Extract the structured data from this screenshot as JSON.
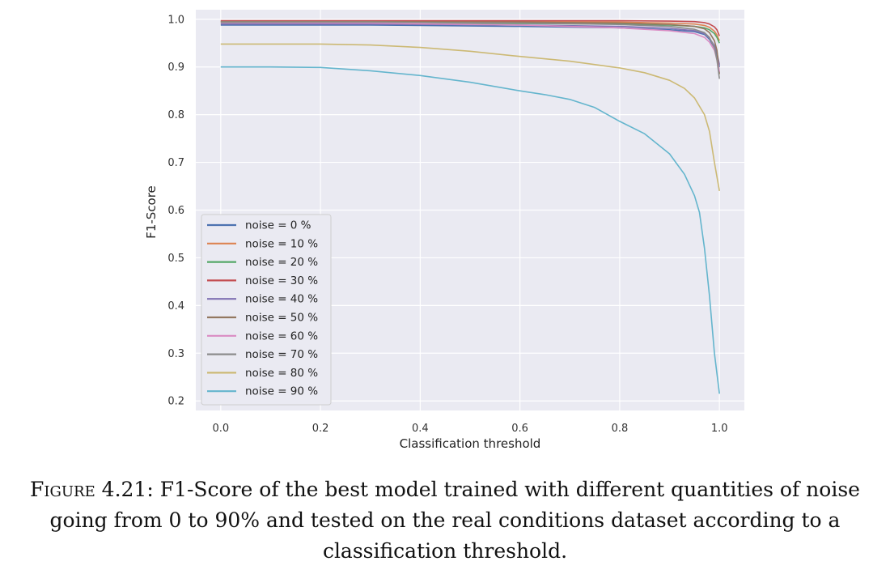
{
  "chart_data": {
    "type": "line",
    "title": "",
    "xlabel": "Classification threshold",
    "ylabel": "F1-Score",
    "xlim": [
      -0.05,
      1.05
    ],
    "ylim": [
      0.18,
      1.02
    ],
    "xticks": [
      "0.0",
      "0.2",
      "0.4",
      "0.6",
      "0.8",
      "1.0"
    ],
    "yticks": [
      "0.2",
      "0.3",
      "0.4",
      "0.5",
      "0.6",
      "0.7",
      "0.8",
      "0.9",
      "1.0"
    ],
    "grid": true,
    "legend_position": "lower-left",
    "series": [
      {
        "name": "noise = 0 %",
        "color": "#4c72b0",
        "points": [
          [
            0,
            0.988
          ],
          [
            0.3,
            0.988
          ],
          [
            0.6,
            0.985
          ],
          [
            0.8,
            0.982
          ],
          [
            0.9,
            0.978
          ],
          [
            0.95,
            0.974
          ],
          [
            0.97,
            0.968
          ],
          [
            0.98,
            0.958
          ],
          [
            0.99,
            0.94
          ],
          [
            0.995,
            0.925
          ],
          [
            1.0,
            0.9
          ]
        ]
      },
      {
        "name": "noise = 10 %",
        "color": "#dd8452",
        "points": [
          [
            0,
            0.996
          ],
          [
            0.3,
            0.996
          ],
          [
            0.6,
            0.995
          ],
          [
            0.8,
            0.994
          ],
          [
            0.9,
            0.992
          ],
          [
            0.95,
            0.99
          ],
          [
            0.97,
            0.987
          ],
          [
            0.98,
            0.983
          ],
          [
            0.99,
            0.975
          ],
          [
            0.995,
            0.967
          ],
          [
            1.0,
            0.955
          ]
        ]
      },
      {
        "name": "noise = 20 %",
        "color": "#55a868",
        "points": [
          [
            0,
            0.992
          ],
          [
            0.3,
            0.992
          ],
          [
            0.6,
            0.991
          ],
          [
            0.8,
            0.99
          ],
          [
            0.9,
            0.988
          ],
          [
            0.95,
            0.985
          ],
          [
            0.97,
            0.982
          ],
          [
            0.98,
            0.978
          ],
          [
            0.99,
            0.97
          ],
          [
            0.995,
            0.962
          ],
          [
            1.0,
            0.95
          ]
        ]
      },
      {
        "name": "noise = 30 %",
        "color": "#c44e52",
        "points": [
          [
            0,
            0.997
          ],
          [
            0.3,
            0.997
          ],
          [
            0.6,
            0.997
          ],
          [
            0.8,
            0.997
          ],
          [
            0.9,
            0.996
          ],
          [
            0.95,
            0.995
          ],
          [
            0.97,
            0.993
          ],
          [
            0.98,
            0.99
          ],
          [
            0.99,
            0.984
          ],
          [
            0.995,
            0.978
          ],
          [
            1.0,
            0.965
          ]
        ]
      },
      {
        "name": "noise = 40 %",
        "color": "#8172b3",
        "points": [
          [
            0,
            0.99
          ],
          [
            0.3,
            0.99
          ],
          [
            0.6,
            0.988
          ],
          [
            0.8,
            0.985
          ],
          [
            0.9,
            0.981
          ],
          [
            0.95,
            0.976
          ],
          [
            0.97,
            0.97
          ],
          [
            0.98,
            0.96
          ],
          [
            0.99,
            0.945
          ],
          [
            0.995,
            0.93
          ],
          [
            1.0,
            0.905
          ]
        ]
      },
      {
        "name": "noise = 50 %",
        "color": "#937860",
        "points": [
          [
            0,
            0.995
          ],
          [
            0.3,
            0.995
          ],
          [
            0.6,
            0.994
          ],
          [
            0.8,
            0.992
          ],
          [
            0.9,
            0.989
          ],
          [
            0.95,
            0.985
          ],
          [
            0.97,
            0.98
          ],
          [
            0.98,
            0.972
          ],
          [
            0.99,
            0.955
          ],
          [
            0.995,
            0.935
          ],
          [
            1.0,
            0.885
          ]
        ]
      },
      {
        "name": "noise = 60 %",
        "color": "#da8bc3",
        "points": [
          [
            0,
            0.993
          ],
          [
            0.3,
            0.992
          ],
          [
            0.6,
            0.988
          ],
          [
            0.8,
            0.982
          ],
          [
            0.9,
            0.976
          ],
          [
            0.95,
            0.97
          ],
          [
            0.97,
            0.962
          ],
          [
            0.98,
            0.952
          ],
          [
            0.99,
            0.935
          ],
          [
            0.995,
            0.915
          ],
          [
            1.0,
            0.89
          ]
        ]
      },
      {
        "name": "noise = 70 %",
        "color": "#8c8c8c",
        "points": [
          [
            0,
            0.994
          ],
          [
            0.3,
            0.994
          ],
          [
            0.6,
            0.992
          ],
          [
            0.8,
            0.989
          ],
          [
            0.9,
            0.985
          ],
          [
            0.95,
            0.979
          ],
          [
            0.97,
            0.972
          ],
          [
            0.98,
            0.962
          ],
          [
            0.99,
            0.94
          ],
          [
            0.995,
            0.915
          ],
          [
            1.0,
            0.875
          ]
        ]
      },
      {
        "name": "noise = 80 %",
        "color": "#ccb974",
        "points": [
          [
            0,
            0.948
          ],
          [
            0.1,
            0.948
          ],
          [
            0.2,
            0.948
          ],
          [
            0.3,
            0.946
          ],
          [
            0.4,
            0.941
          ],
          [
            0.5,
            0.933
          ],
          [
            0.6,
            0.922
          ],
          [
            0.7,
            0.912
          ],
          [
            0.8,
            0.898
          ],
          [
            0.85,
            0.888
          ],
          [
            0.9,
            0.872
          ],
          [
            0.93,
            0.855
          ],
          [
            0.95,
            0.835
          ],
          [
            0.97,
            0.8
          ],
          [
            0.98,
            0.765
          ],
          [
            0.99,
            0.7
          ],
          [
            1.0,
            0.64
          ]
        ]
      },
      {
        "name": "noise = 90 %",
        "color": "#64b5cd",
        "points": [
          [
            0,
            0.9
          ],
          [
            0.1,
            0.9
          ],
          [
            0.2,
            0.899
          ],
          [
            0.3,
            0.892
          ],
          [
            0.4,
            0.882
          ],
          [
            0.5,
            0.868
          ],
          [
            0.6,
            0.85
          ],
          [
            0.65,
            0.842
          ],
          [
            0.7,
            0.832
          ],
          [
            0.75,
            0.815
          ],
          [
            0.8,
            0.786
          ],
          [
            0.85,
            0.76
          ],
          [
            0.9,
            0.718
          ],
          [
            0.93,
            0.675
          ],
          [
            0.95,
            0.63
          ],
          [
            0.96,
            0.595
          ],
          [
            0.97,
            0.52
          ],
          [
            0.98,
            0.42
          ],
          [
            0.99,
            0.3
          ],
          [
            1.0,
            0.215
          ]
        ]
      }
    ]
  },
  "caption": {
    "label": "Figure 4.21:",
    "text": " F1-Score of the best model trained with different quantities of noise going from 0 to 90% and tested on the real conditions dataset according to a classification threshold."
  }
}
